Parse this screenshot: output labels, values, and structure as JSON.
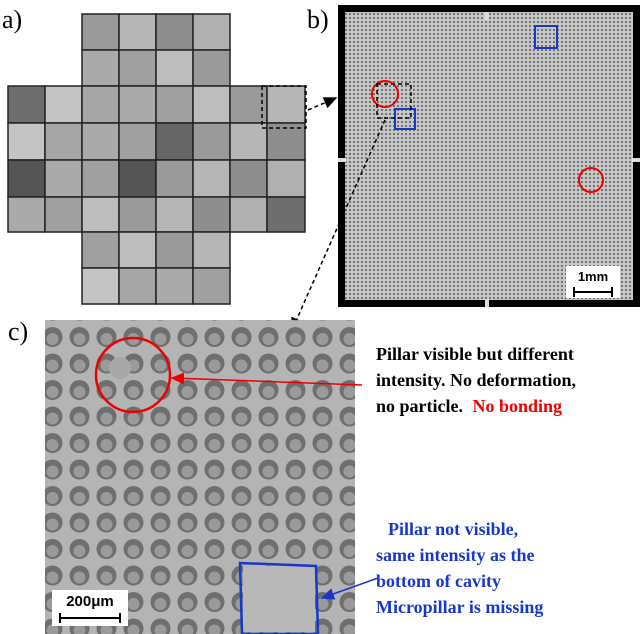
{
  "panels": {
    "a": {
      "label": "a)"
    },
    "b": {
      "label": "b)",
      "scale_bar": "1mm"
    },
    "c": {
      "label": "c)",
      "scale_bar": "200μm"
    }
  },
  "annotations": {
    "red": {
      "lines": [
        "Pillar visible but different",
        "intensity. No deformation,",
        "no particle."
      ],
      "highlight": "No bonding"
    },
    "blue": {
      "lines": [
        "Pillar not visible,",
        "same intensity as the",
        "bottom of cavity"
      ],
      "highlight": "Micropillar is missing"
    }
  }
}
